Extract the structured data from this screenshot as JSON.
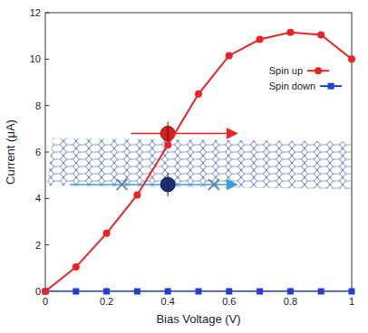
{
  "chart_data": {
    "type": "line",
    "x_label": "Bias Voltage (V)",
    "y_label": "Current (μA)",
    "x": [
      0,
      0.1,
      0.2,
      0.3,
      0.4,
      0.5,
      0.6,
      0.7,
      0.8,
      0.9,
      1.0
    ],
    "series": [
      {
        "name": "Spin up",
        "color": "#ee2222",
        "marker": "circle",
        "line_style": "solid",
        "values": [
          0,
          1.05,
          2.5,
          4.15,
          6.3,
          8.5,
          10.15,
          10.85,
          11.15,
          11.05,
          10.0
        ]
      },
      {
        "name": "Spin down",
        "color": "#1f3fd8",
        "marker": "square",
        "line_style": "solid",
        "values": [
          0,
          0,
          0,
          0,
          0,
          0,
          0,
          0,
          0,
          0,
          0
        ]
      }
    ],
    "xlim": [
      0,
      1
    ],
    "xticks": [
      0,
      0.2,
      0.4,
      0.6,
      0.8,
      1
    ],
    "ylim": [
      0,
      12
    ],
    "yticks": [
      0,
      2,
      4,
      6,
      8,
      10,
      12
    ],
    "legend": "upper right"
  }
}
